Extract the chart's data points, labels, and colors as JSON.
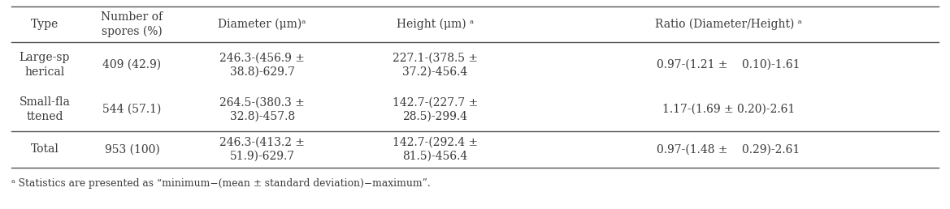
{
  "figsize": [
    11.69,
    2.58
  ],
  "dpi": 100,
  "headers": [
    "Type",
    "Number of\nspores (%)",
    "Diameter (μm)ᵃ",
    "Height (μm) ᵃ",
    "Ratio (Diameter/Height) ᵃ"
  ],
  "rows": [
    [
      "Large-sp\nherical",
      "409 (42.9)",
      "246.3-(456.9 ±\n38.8)-629.7",
      "227.1-(378.5 ±\n37.2)-456.4",
      "0.97-(1.21 ±    0.10)-1.61"
    ],
    [
      "Small-fla\nttened",
      "544 (57.1)",
      "264.5-(380.3 ±\n32.8)-457.8",
      "142.7-(227.7 ±\n28.5)-299.4",
      "1.17-(1.69 ± 0.20)-2.61"
    ],
    [
      "Total",
      "953 (100)",
      "246.3-(413.2 ±\n51.9)-629.7",
      "142.7-(292.4 ±\n81.5)-456.4",
      "0.97-(1.48 ±    0.29)-2.61"
    ]
  ],
  "footnote": "ᵃ Statistics are presented as “minimum−(mean ± standard deviation)−maximum”.",
  "font_size": 10.0,
  "text_color": "#3a3a3a",
  "line_color": "#555555",
  "background_color": "#ffffff"
}
